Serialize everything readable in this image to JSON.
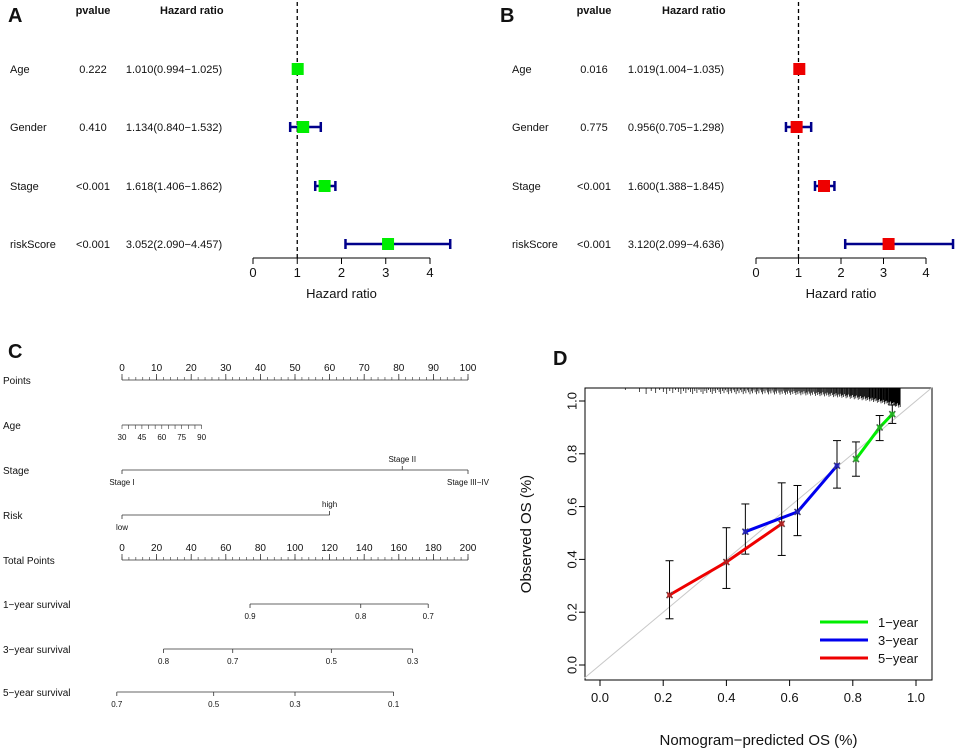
{
  "panels": {
    "A": "A",
    "B": "B",
    "C": "C",
    "D": "D"
  },
  "chart_data": [
    {
      "type": "forest",
      "panel": "A",
      "col_pvalue": "pvalue",
      "col_hr": "Hazard ratio",
      "xlabel": "Hazard ratio",
      "xlim": [
        0,
        4
      ],
      "ticks": [
        "0",
        "1",
        "2",
        "3",
        "4"
      ],
      "reference": 1,
      "color": "#00ee00",
      "rows": [
        {
          "label": "Age",
          "pvalue": "0.222",
          "hr_text": "1.010(0.994−1.025)",
          "hr": 1.01,
          "lo": 0.994,
          "hi": 1.025
        },
        {
          "label": "Gender",
          "pvalue": "0.410",
          "hr_text": "1.134(0.840−1.532)",
          "hr": 1.134,
          "lo": 0.84,
          "hi": 1.532
        },
        {
          "label": "Stage",
          "pvalue": "<0.001",
          "hr_text": "1.618(1.406−1.862)",
          "hr": 1.618,
          "lo": 1.406,
          "hi": 1.862
        },
        {
          "label": "riskScore",
          "pvalue": "<0.001",
          "hr_text": "3.052(2.090−4.457)",
          "hr": 3.052,
          "lo": 2.09,
          "hi": 4.457
        }
      ]
    },
    {
      "type": "forest",
      "panel": "B",
      "col_pvalue": "pvalue",
      "col_hr": "Hazard ratio",
      "xlabel": "Hazard ratio",
      "xlim": [
        0,
        4
      ],
      "ticks": [
        "0",
        "1",
        "2",
        "3",
        "4"
      ],
      "reference": 1,
      "color": "#ee0000",
      "rows": [
        {
          "label": "Age",
          "pvalue": "0.016",
          "hr_text": "1.019(1.004−1.035)",
          "hr": 1.019,
          "lo": 1.004,
          "hi": 1.035
        },
        {
          "label": "Gender",
          "pvalue": "0.775",
          "hr_text": "0.956(0.705−1.298)",
          "hr": 0.956,
          "lo": 0.705,
          "hi": 1.298
        },
        {
          "label": "Stage",
          "pvalue": "<0.001",
          "hr_text": "1.600(1.388−1.845)",
          "hr": 1.6,
          "lo": 1.388,
          "hi": 1.845
        },
        {
          "label": "riskScore",
          "pvalue": "<0.001",
          "hr_text": "3.120(2.099−4.636)",
          "hr": 3.12,
          "lo": 2.099,
          "hi": 4.636
        }
      ]
    },
    {
      "type": "nomogram",
      "panel": "C",
      "rows": [
        {
          "label": "Points",
          "scale_min": 0,
          "scale_max": 100,
          "ticks": [
            {
              "v": 0,
              "t": "0"
            },
            {
              "v": 10,
              "t": "10"
            },
            {
              "v": 20,
              "t": "20"
            },
            {
              "v": 30,
              "t": "30"
            },
            {
              "v": 40,
              "t": "40"
            },
            {
              "v": 50,
              "t": "50"
            },
            {
              "v": 60,
              "t": "60"
            },
            {
              "v": 70,
              "t": "70"
            },
            {
              "v": 80,
              "t": "80"
            },
            {
              "v": 90,
              "t": "90"
            },
            {
              "v": 100,
              "t": "100"
            }
          ]
        },
        {
          "label": "Age",
          "from_points": 0,
          "to_points": 23,
          "ticks": [
            {
              "v": 30,
              "t": "30"
            },
            {
              "v": 45,
              "t": "45"
            },
            {
              "v": 60,
              "t": "60"
            },
            {
              "v": 75,
              "t": "75"
            },
            {
              "v": 90,
              "t": "90"
            }
          ],
          "vmin": 30,
          "vmax": 90
        },
        {
          "label": "Stage",
          "from_points": 0,
          "to_points": 100,
          "categories": [
            {
              "points": 0,
              "t": "Stage I"
            },
            {
              "points": 81,
              "t": "Stage II"
            },
            {
              "points": 100,
              "t": "Stage III−IV"
            }
          ]
        },
        {
          "label": "Risk",
          "from_points": 0,
          "to_points": 60,
          "categories": [
            {
              "points": 0,
              "t": "low"
            },
            {
              "points": 60,
              "t": "high"
            }
          ]
        },
        {
          "label": "Total Points",
          "scale_min": 0,
          "scale_max": 200,
          "ticks": [
            {
              "v": 0,
              "t": "0"
            },
            {
              "v": 20,
              "t": "20"
            },
            {
              "v": 40,
              "t": "40"
            },
            {
              "v": 60,
              "t": "60"
            },
            {
              "v": 80,
              "t": "80"
            },
            {
              "v": 100,
              "t": "100"
            },
            {
              "v": 120,
              "t": "120"
            },
            {
              "v": 140,
              "t": "140"
            },
            {
              "v": 160,
              "t": "160"
            },
            {
              "v": 180,
              "t": "180"
            },
            {
              "v": 200,
              "t": "200"
            }
          ]
        },
        {
          "label": "1−year survival",
          "from_total": 74,
          "to_total": 177,
          "ticks": [
            {
              "total": 74,
              "t": "0.9"
            },
            {
              "total": 138,
              "t": "0.8"
            },
            {
              "total": 177,
              "t": "0.7"
            }
          ]
        },
        {
          "label": "3−year survival",
          "from_total": 24,
          "to_total": 168,
          "ticks": [
            {
              "total": 24,
              "t": "0.8"
            },
            {
              "total": 64,
              "t": "0.7"
            },
            {
              "total": 121,
              "t": "0.5"
            },
            {
              "total": 168,
              "t": "0.3"
            }
          ]
        },
        {
          "label": "5−year survival",
          "from_total": -3,
          "to_total": 157,
          "ticks": [
            {
              "total": -3,
              "t": "0.7"
            },
            {
              "total": 53,
              "t": "0.5"
            },
            {
              "total": 100,
              "t": "0.3"
            },
            {
              "total": 157,
              "t": "0.1"
            }
          ]
        }
      ]
    },
    {
      "type": "line",
      "panel": "D",
      "xlabel": "Nomogram−predicted OS (%)",
      "ylabel": "Observed OS (%)",
      "xlim": [
        0,
        1
      ],
      "ylim": [
        0,
        1
      ],
      "xticks": [
        "0.0",
        "0.2",
        "0.4",
        "0.6",
        "0.8",
        "1.0"
      ],
      "yticks": [
        "0.0",
        "0.2",
        "0.4",
        "0.6",
        "0.8",
        "1.0"
      ],
      "series": [
        {
          "name": "1−year",
          "color": "#00ee00",
          "x": [
            0.81,
            0.885,
            0.925
          ],
          "y": [
            0.78,
            0.9,
            0.95
          ],
          "lo": [
            0.715,
            0.85,
            0.915
          ],
          "hi": [
            0.845,
            0.945,
            0.985
          ]
        },
        {
          "name": "3−year",
          "color": "#0000ee",
          "x": [
            0.46,
            0.625,
            0.75
          ],
          "y": [
            0.505,
            0.58,
            0.755
          ],
          "lo": [
            0.42,
            0.49,
            0.67
          ],
          "hi": [
            0.61,
            0.68,
            0.85
          ]
        },
        {
          "name": "5−year",
          "color": "#ee0000",
          "x": [
            0.22,
            0.4,
            0.575
          ],
          "y": [
            0.265,
            0.39,
            0.535
          ],
          "lo": [
            0.175,
            0.29,
            0.415
          ],
          "hi": [
            0.395,
            0.52,
            0.69
          ]
        }
      ],
      "legend_position": "bottom-right"
    }
  ]
}
